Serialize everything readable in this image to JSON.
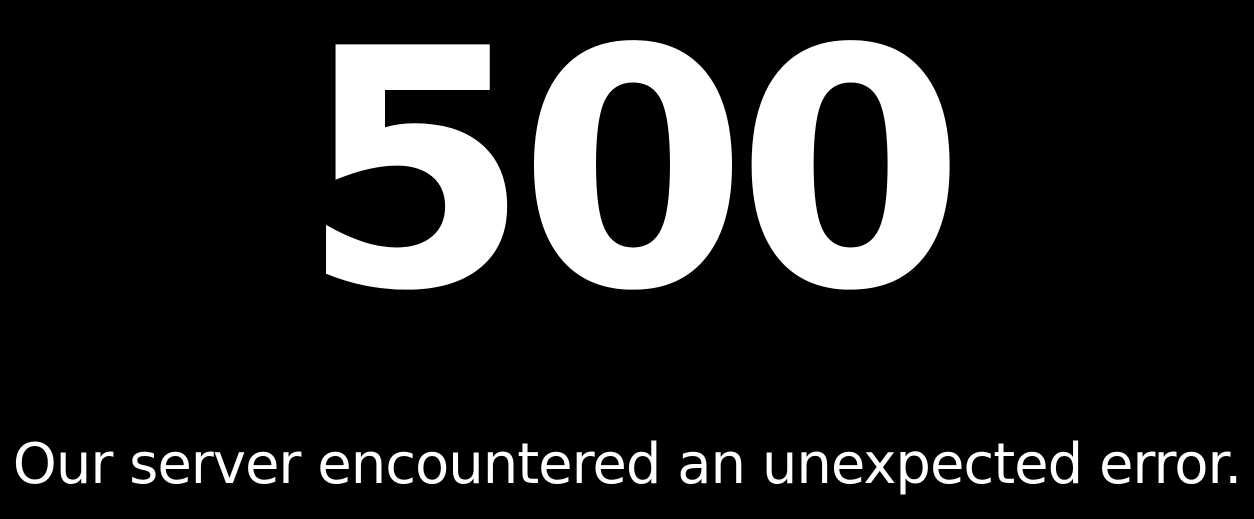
{
  "error": {
    "code": "500",
    "message": "Our server encountered an unexpected error."
  },
  "colors": {
    "background": "#000000",
    "text": "#ffffff"
  }
}
